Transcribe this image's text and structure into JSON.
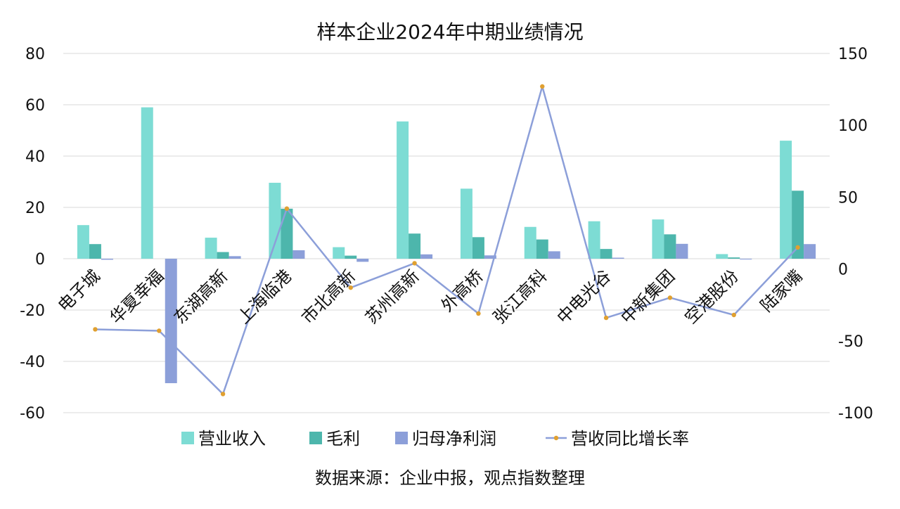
{
  "chart_data": {
    "type": "bar",
    "title": "样本企业2024年中期业绩情况",
    "source_note": "数据来源：企业中报，观点指数整理",
    "categories": [
      "电子城",
      "华夏幸福",
      "东湖高新",
      "上海临港",
      "市北高新",
      "苏州高新",
      "外高桥",
      "张江高科",
      "中电光谷",
      "中新集团",
      "空港股份",
      "陆家嘴"
    ],
    "series": [
      {
        "name": "营业收入",
        "kind": "bar",
        "axis": "left",
        "color": "#7ddcd4",
        "values": [
          13.1,
          59.0,
          8.2,
          29.6,
          4.5,
          53.5,
          27.3,
          12.4,
          14.6,
          15.3,
          1.8,
          46.0
        ]
      },
      {
        "name": "毛利",
        "kind": "bar",
        "axis": "left",
        "color": "#4db6ac",
        "values": [
          5.7,
          0,
          2.6,
          19.5,
          1.2,
          9.8,
          8.4,
          7.5,
          3.8,
          9.5,
          0.5,
          26.5
        ]
      },
      {
        "name": "归母净利润",
        "kind": "bar",
        "axis": "left",
        "color": "#8c9fd9",
        "values": [
          -0.4,
          -48.5,
          1.0,
          3.3,
          -1.2,
          1.7,
          1.3,
          2.9,
          0.4,
          5.8,
          -0.3,
          5.7
        ]
      },
      {
        "name": "营收同比增长率",
        "kind": "line",
        "axis": "right",
        "color": "#8c9fd9",
        "marker_color": "#e0a030",
        "values": [
          -42,
          -43,
          -87,
          42,
          -13,
          4,
          -31,
          127,
          -34,
          -20,
          -32,
          15
        ]
      }
    ],
    "y_left": {
      "min": -60,
      "max": 80,
      "ticks": [
        80,
        60,
        40,
        20,
        0,
        -20,
        -40,
        -60
      ]
    },
    "y_right": {
      "min": -100,
      "max": 150,
      "ticks": [
        150,
        100,
        50,
        0,
        -50,
        -100
      ]
    },
    "grid": true,
    "legend_position": "bottom"
  }
}
